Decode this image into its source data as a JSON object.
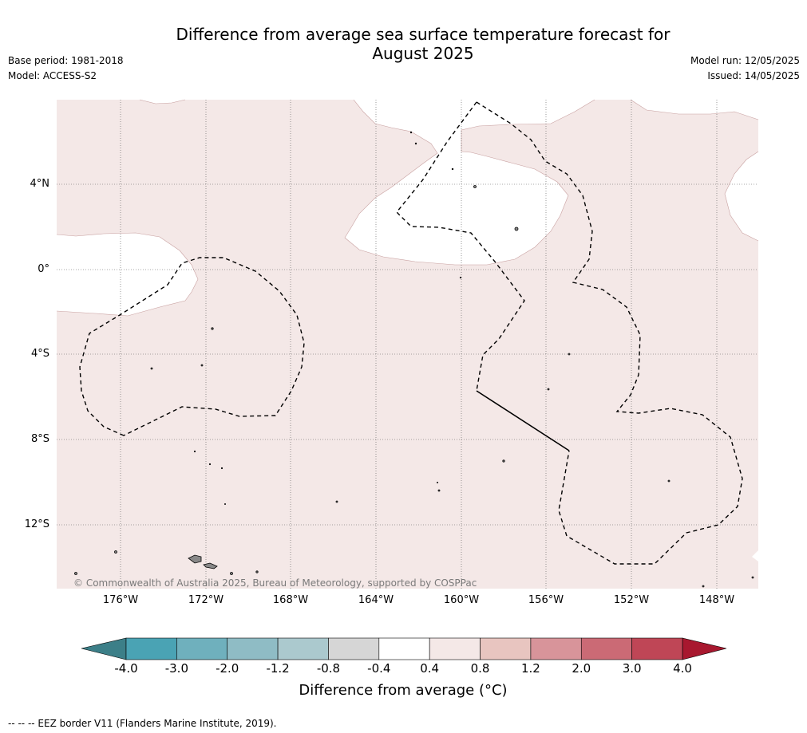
{
  "title_line1": "Difference from average sea surface temperature forecast for",
  "title_line2": "August 2025",
  "base_period": "Base period: 1981-2018",
  "model": "Model: ACCESS-S2",
  "model_run": "Model run: 12/05/2025",
  "issued": "Issued: 14/05/2025",
  "lat_labels": [
    "4°N",
    "0°",
    "4°S",
    "8°S",
    "12°S"
  ],
  "lon_labels": [
    "176°W",
    "172°W",
    "168°W",
    "164°W",
    "160°W",
    "156°W",
    "152°W",
    "148°W"
  ],
  "copyright": "© Commonwealth of Australia 2025, Bureau of Meteorology, supported by COSPPac",
  "colorbar": {
    "labels": [
      "-4.0",
      "-3.0",
      "-2.0",
      "-1.2",
      "-0.8",
      "-0.4",
      "0.4",
      "0.8",
      "1.2",
      "2.0",
      "3.0",
      "4.0"
    ],
    "colors": [
      "#4aa3b4",
      "#6fb0bd",
      "#8fbcc5",
      "#abc9ce",
      "#d6d6d6",
      "#ffffff",
      "#f4e8e7",
      "#e8c5c0",
      "#d8949a",
      "#cb6a75",
      "#bf4656"
    ],
    "low_extend_color": "#3c7f88",
    "high_extend_color": "#a8182f",
    "title": "Difference from average (°C)"
  },
  "legend_note": "--  --  -- EEZ border V11 (Flanders Marine Institute, 2019).",
  "map": {
    "background_anomaly_color": "#f4e8e7",
    "neutral_color": "#ffffff"
  }
}
